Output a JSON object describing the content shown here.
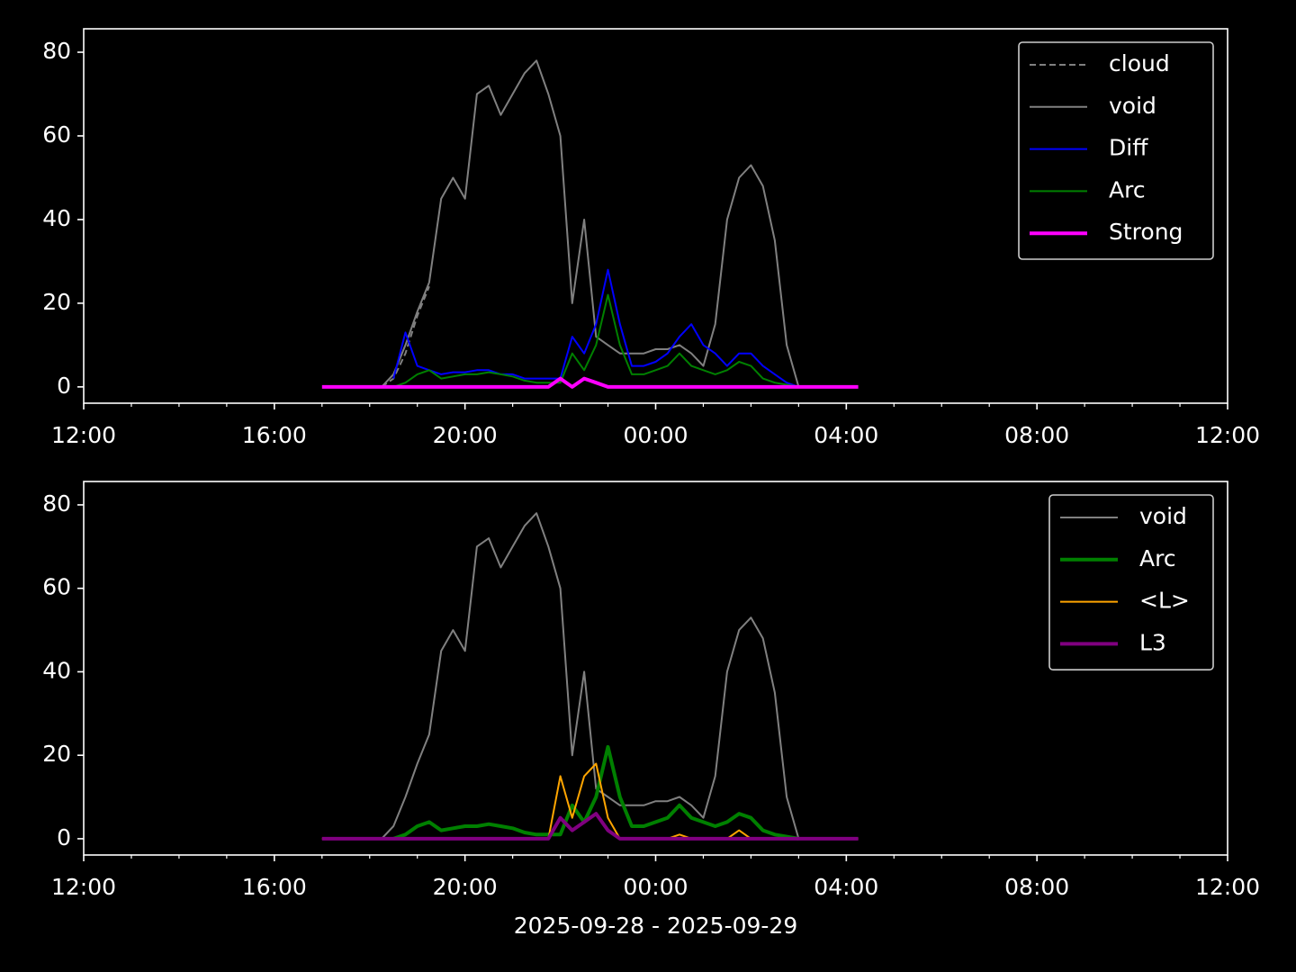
{
  "chart_data": [
    {
      "type": "line",
      "x": [
        17,
        17.25,
        17.5,
        17.75,
        18,
        18.25,
        18.5,
        18.75,
        19,
        19.25,
        19.5,
        19.75,
        20,
        20.25,
        20.5,
        20.75,
        21,
        21.25,
        21.5,
        21.75,
        22,
        22.25,
        22.5,
        22.75,
        23,
        23.25,
        23.5,
        23.75,
        24,
        24.25,
        24.5,
        24.75,
        25,
        25.25,
        25.5,
        25.75,
        26,
        26.25,
        26.5,
        26.75,
        27,
        27.25,
        27.5,
        27.75,
        28,
        28.25
      ],
      "xlim": [
        12,
        36
      ],
      "xticks": [
        {
          "value": 12,
          "label": "12:00"
        },
        {
          "value": 16,
          "label": "16:00"
        },
        {
          "value": 20,
          "label": "20:00"
        },
        {
          "value": 24,
          "label": "00:00"
        },
        {
          "value": 28,
          "label": "04:00"
        },
        {
          "value": 32,
          "label": "08:00"
        },
        {
          "value": 36,
          "label": "12:00"
        }
      ],
      "xminorticks": [
        13,
        14,
        15,
        17,
        18,
        19,
        21,
        22,
        23,
        25,
        26,
        27,
        29,
        30,
        31,
        33,
        34,
        35
      ],
      "ylim": [
        -3.9,
        85.6
      ],
      "yticks": [
        0,
        20,
        40,
        60,
        80
      ],
      "legend": "upper right",
      "series": [
        {
          "name": "cloud",
          "color": "#808080",
          "dashed": true,
          "width": 2,
          "values": [
            null,
            null,
            null,
            null,
            null,
            0,
            2,
            8,
            17,
            24,
            null,
            null,
            null,
            null,
            null,
            null,
            null,
            null,
            null,
            null,
            null,
            null,
            null,
            null,
            null,
            null,
            null,
            null,
            null,
            null,
            null,
            null,
            null,
            null,
            null,
            null,
            null,
            null,
            null,
            null,
            null,
            null,
            null,
            null,
            null,
            null
          ]
        },
        {
          "name": "void",
          "color": "#808080",
          "width": 2,
          "values": [
            null,
            null,
            null,
            null,
            null,
            0,
            3,
            10,
            18,
            25,
            45,
            50,
            45,
            70,
            72,
            65,
            70,
            75,
            78,
            70,
            60,
            20,
            40,
            12,
            10,
            8,
            8,
            8,
            9,
            9,
            10,
            8,
            5,
            15,
            40,
            50,
            53,
            48,
            35,
            10,
            0,
            null,
            null,
            null,
            null,
            null
          ]
        },
        {
          "name": "Diff",
          "color": "#0000ff",
          "width": 2,
          "values": [
            null,
            null,
            null,
            null,
            null,
            null,
            2,
            13,
            5,
            4,
            3,
            3.5,
            3.5,
            4,
            4,
            3,
            3,
            2,
            2,
            2,
            2,
            12,
            8,
            15,
            28,
            15,
            5,
            5,
            6,
            8,
            12,
            15,
            10,
            8,
            5,
            8,
            8,
            5,
            3,
            1,
            0,
            null,
            null,
            null,
            null,
            null
          ]
        },
        {
          "name": "Arc",
          "color": "#008000",
          "width": 2,
          "values": [
            null,
            null,
            null,
            null,
            null,
            null,
            0,
            1,
            3,
            4,
            2,
            2.5,
            3,
            3,
            3.5,
            3,
            2.5,
            1.5,
            1,
            1,
            1,
            8,
            4,
            10,
            22,
            10,
            3,
            3,
            4,
            5,
            8,
            5,
            4,
            3,
            4,
            6,
            5,
            2,
            1,
            0.5,
            0,
            null,
            null,
            null,
            null,
            null
          ]
        },
        {
          "name": "Strong",
          "color": "#ff00ff",
          "width": 4,
          "values": [
            0,
            0,
            0,
            0,
            0,
            0,
            0,
            0,
            0,
            0,
            0,
            0,
            0,
            0,
            0,
            0,
            0,
            0,
            0,
            0,
            2,
            0,
            2,
            1,
            0,
            0,
            0,
            0,
            0,
            0,
            0,
            0,
            0,
            0,
            0,
            0,
            0,
            0,
            0,
            0,
            0,
            0,
            0,
            0,
            0,
            0
          ]
        }
      ]
    },
    {
      "type": "line",
      "x": [
        17,
        17.25,
        17.5,
        17.75,
        18,
        18.25,
        18.5,
        18.75,
        19,
        19.25,
        19.5,
        19.75,
        20,
        20.25,
        20.5,
        20.75,
        21,
        21.25,
        21.5,
        21.75,
        22,
        22.25,
        22.5,
        22.75,
        23,
        23.25,
        23.5,
        23.75,
        24,
        24.25,
        24.5,
        24.75,
        25,
        25.25,
        25.5,
        25.75,
        26,
        26.25,
        26.5,
        26.75,
        27,
        27.25,
        27.5,
        27.75,
        28,
        28.25
      ],
      "xlim": [
        12,
        36
      ],
      "xticks": [
        {
          "value": 12,
          "label": "12:00"
        },
        {
          "value": 16,
          "label": "16:00"
        },
        {
          "value": 20,
          "label": "20:00"
        },
        {
          "value": 24,
          "label": "00:00"
        },
        {
          "value": 28,
          "label": "04:00"
        },
        {
          "value": 32,
          "label": "08:00"
        },
        {
          "value": 36,
          "label": "12:00"
        }
      ],
      "xminorticks": [
        13,
        14,
        15,
        17,
        18,
        19,
        21,
        22,
        23,
        25,
        26,
        27,
        29,
        30,
        31,
        33,
        34,
        35
      ],
      "ylim": [
        -3.9,
        85.6
      ],
      "yticks": [
        0,
        20,
        40,
        60,
        80
      ],
      "xlabel": "2025-09-28 - 2025-09-29",
      "legend": "upper right",
      "series": [
        {
          "name": "void",
          "color": "#808080",
          "width": 2,
          "values": [
            null,
            null,
            null,
            null,
            null,
            0,
            3,
            10,
            18,
            25,
            45,
            50,
            45,
            70,
            72,
            65,
            70,
            75,
            78,
            70,
            60,
            20,
            40,
            12,
            10,
            8,
            8,
            8,
            9,
            9,
            10,
            8,
            5,
            15,
            40,
            50,
            53,
            48,
            35,
            10,
            0,
            null,
            null,
            null,
            null,
            null
          ]
        },
        {
          "name": "Arc",
          "color": "#008000",
          "width": 4,
          "values": [
            null,
            null,
            null,
            null,
            null,
            null,
            0,
            1,
            3,
            4,
            2,
            2.5,
            3,
            3,
            3.5,
            3,
            2.5,
            1.5,
            1,
            1,
            1,
            8,
            4,
            10,
            22,
            10,
            3,
            3,
            4,
            5,
            8,
            5,
            4,
            3,
            4,
            6,
            5,
            2,
            1,
            0.5,
            0,
            null,
            null,
            null,
            null,
            null
          ]
        },
        {
          "name": "<L>",
          "color": "#ffa500",
          "width": 2,
          "values": [
            0,
            0,
            0,
            0,
            0,
            0,
            0,
            0,
            0,
            0,
            0,
            0,
            0,
            0,
            0,
            0,
            0,
            0,
            0,
            0,
            15,
            5,
            15,
            18,
            5,
            0,
            0,
            0,
            0,
            0,
            1,
            0,
            0,
            0,
            0,
            2,
            0,
            0,
            0,
            0,
            0,
            0,
            0,
            0,
            0,
            0
          ]
        },
        {
          "name": "L3",
          "color": "#800080",
          "width": 4,
          "values": [
            0,
            0,
            0,
            0,
            0,
            0,
            0,
            0,
            0,
            0,
            0,
            0,
            0,
            0,
            0,
            0,
            0,
            0,
            0,
            0,
            5,
            2,
            4,
            6,
            2,
            0,
            0,
            0,
            0,
            0,
            0,
            0,
            0,
            0,
            0,
            0,
            0,
            0,
            0,
            0,
            0,
            0,
            0,
            0,
            0,
            0
          ]
        }
      ]
    }
  ]
}
